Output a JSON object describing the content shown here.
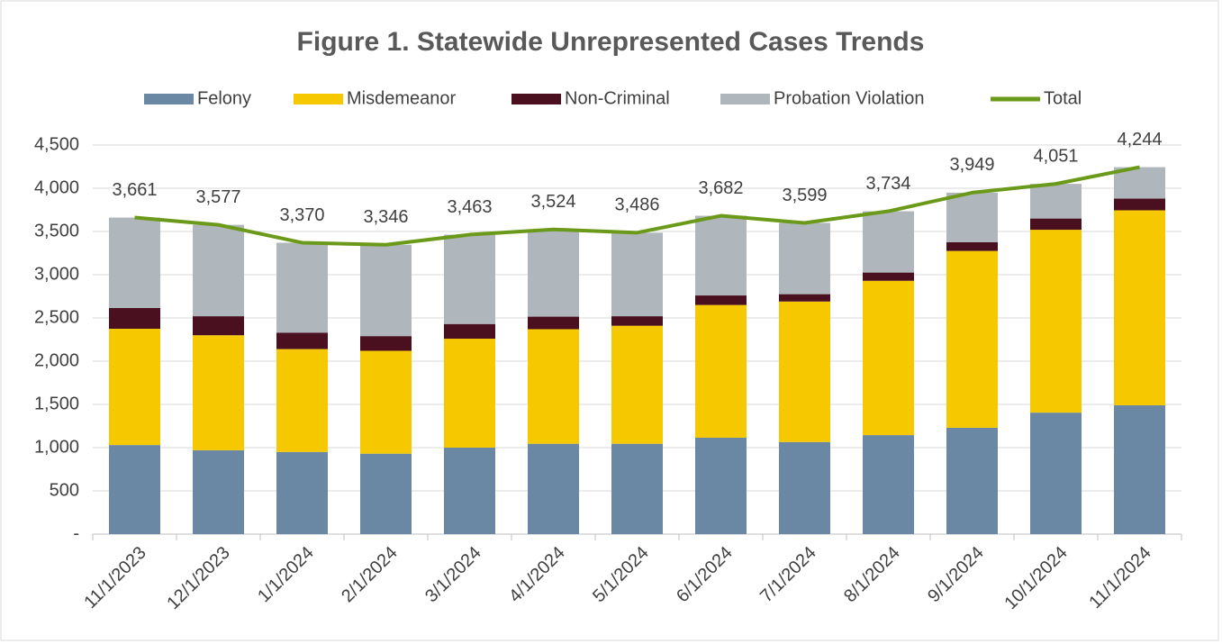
{
  "chart_data": {
    "type": "bar",
    "stacked": true,
    "title": "Figure 1. Statewide Unrepresented Cases Trends",
    "categories": [
      "11/1/2023",
      "12/1/2023",
      "1/1/2024",
      "2/1/2024",
      "3/1/2024",
      "4/1/2024",
      "5/1/2024",
      "6/1/2024",
      "7/1/2024",
      "8/1/2024",
      "9/1/2024",
      "10/1/2024",
      "11/1/2024"
    ],
    "series": [
      {
        "name": "Felony",
        "color": "#6a87a3",
        "values": [
          1030,
          970,
          950,
          930,
          1000,
          1045,
          1045,
          1115,
          1065,
          1145,
          1230,
          1405,
          1490
        ]
      },
      {
        "name": "Misdemeanor",
        "color": "#f5c800",
        "values": [
          1345,
          1330,
          1190,
          1190,
          1260,
          1325,
          1365,
          1535,
          1625,
          1785,
          2045,
          2115,
          2255
        ]
      },
      {
        "name": "Non-Criminal",
        "color": "#4a1020",
        "values": [
          240,
          220,
          190,
          170,
          170,
          145,
          110,
          110,
          85,
          95,
          100,
          130,
          135
        ]
      },
      {
        "name": "Probation Violation",
        "color": "#b0b7bc",
        "values": [
          1046,
          1057,
          1040,
          1056,
          1033,
          1009,
          966,
          922,
          824,
          709,
          574,
          401,
          364
        ]
      },
      {
        "name": "Total",
        "color": "#6b9a1a",
        "type": "line",
        "values": [
          3661,
          3577,
          3370,
          3346,
          3463,
          3524,
          3486,
          3682,
          3599,
          3734,
          3949,
          4051,
          4244
        ],
        "value_labels": [
          "3,661",
          "3,577",
          "3,370",
          "3,346",
          "3,463",
          "3,524",
          "3,486",
          "3,682",
          "3,599",
          "3,734",
          "3,949",
          "4,051",
          "4,244"
        ]
      }
    ],
    "ylim": [
      0,
      4500
    ],
    "yticks": [
      {
        "value": 0,
        "label": "-"
      },
      500,
      {
        "value": 1000,
        "label": "1,000"
      },
      {
        "value": 1500,
        "label": "1,500"
      },
      {
        "value": 2000,
        "label": "2,000"
      },
      {
        "value": 2500,
        "label": "2,500"
      },
      {
        "value": 3000,
        "label": "3,000"
      },
      {
        "value": 3500,
        "label": "3,500"
      },
      {
        "value": 4000,
        "label": "4,000"
      },
      {
        "value": 4500,
        "label": "4,500"
      }
    ],
    "grid": true
  }
}
